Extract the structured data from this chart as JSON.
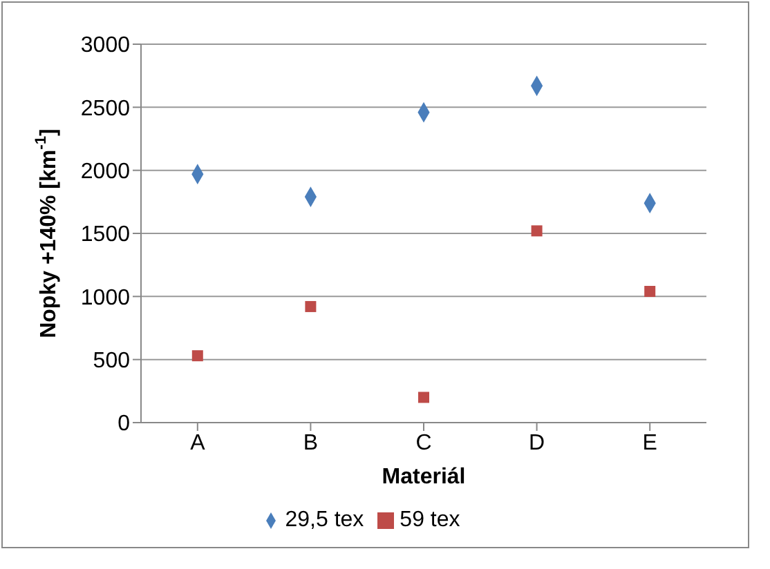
{
  "chart_data": {
    "type": "scatter",
    "xlabel": "Materiál",
    "ylabel": "Nopky +140% [km$^{-1}$]",
    "categories": [
      "A",
      "B",
      "C",
      "D",
      "E"
    ],
    "series": [
      {
        "name": "29,5 tex",
        "color": "#4a7ebb",
        "marker": "diamond",
        "values": [
          1970,
          1790,
          2460,
          2670,
          1740
        ]
      },
      {
        "name": "59 tex",
        "color": "#be4b48",
        "marker": "square",
        "values": [
          530,
          920,
          200,
          1520,
          1040
        ]
      }
    ],
    "ylim": [
      0,
      3000
    ],
    "yticks": [
      0,
      500,
      1000,
      1500,
      2000,
      2500,
      3000
    ],
    "grid": "y",
    "legend": "bottom"
  }
}
